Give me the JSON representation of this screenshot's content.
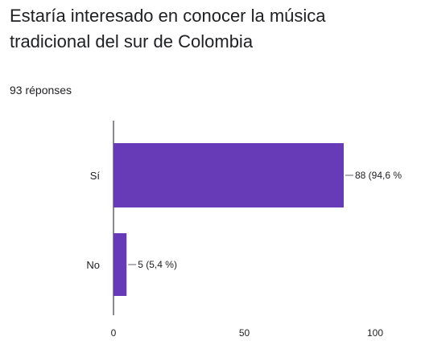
{
  "question": {
    "title": "Estaría interesado en conocer la música tradicional del sur de Colombia",
    "responses_count": "93 réponses"
  },
  "chart_data": {
    "type": "bar",
    "orientation": "horizontal",
    "categories": [
      "Sí",
      "No"
    ],
    "values": [
      88,
      5
    ],
    "data_labels": [
      "88 (94,6 %",
      "5 (5,4 %)"
    ],
    "title": "",
    "xlabel": "",
    "ylabel": "",
    "xlim": [
      0,
      100
    ],
    "xticks": [
      "0",
      "50",
      "100"
    ],
    "bar_color": "#673ab7",
    "grid": false
  }
}
